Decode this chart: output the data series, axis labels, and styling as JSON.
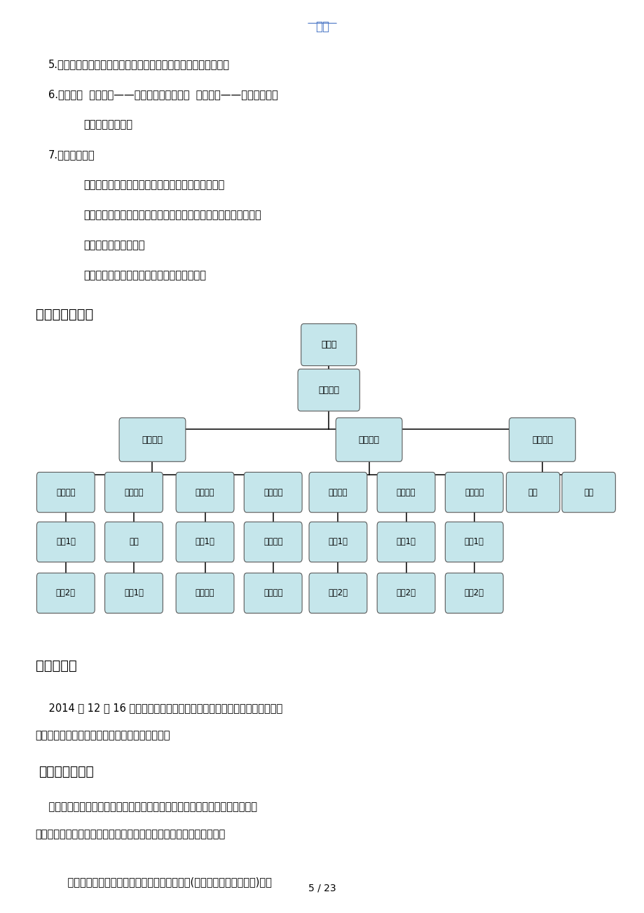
{
  "page_header": "文档",
  "header_color": "#4472C4",
  "bg_color": "#ffffff",
  "text_color": "#000000",
  "body_lines": [
    {
      "indent": 0.075,
      "text": "5.工作态度：迅速的执行态度、和谐的团队合作、优质的礼貌运动"
    },
    {
      "indent": 0.075,
      "text": "6.管理模式  一级管理——实行项目经理负责制  两级申诉——可越级申诉，"
    },
    {
      "indent": 0.13,
      "text": "不可越级申报工作"
    },
    {
      "indent": 0.075,
      "text": "7.核心价值观："
    },
    {
      "indent": 0.13,
      "text": "以客户为导向，关注为客户提供价值，杜绝短期行为"
    },
    {
      "indent": 0.13,
      "text": "以行动为准如此，深入实际，扎扎实实，提供切实可行的解决方案"
    },
    {
      "indent": 0.13,
      "text": "尊重、信任和团队精神"
    },
    {
      "indent": 0.13,
      "text": "正直、诚实和责任心是对每个员工的根本要求"
    }
  ],
  "section1_title": "（四）组织架构",
  "org_box_fill": "#c5e6eb",
  "org_box_edge": "#5a5a5a",
  "org_line_color": "#000000",
  "section2_title": "三、实习容",
  "para1a": "    2014 年 12 月 16 日，我作为一名实习生进入了智策人力资源服务派遣部，",
  "para1b": "从事相关的实习工作，主要工作有以下几个方面：",
  "section3_title": "（一）代理招聘",
  "para2a": "    根据公司客户的招聘需求和要求，对招聘岗位进展深入分析，制定招聘方案，",
  "para2b": "确定招聘的方式、方法以与招聘进程。而我主要做的有以下几个方面：",
  "para3": "    实习期间每天都会接收大量应聘者投递的简历(包括直接发到中的简历)。因",
  "footer": "5 / 23"
}
